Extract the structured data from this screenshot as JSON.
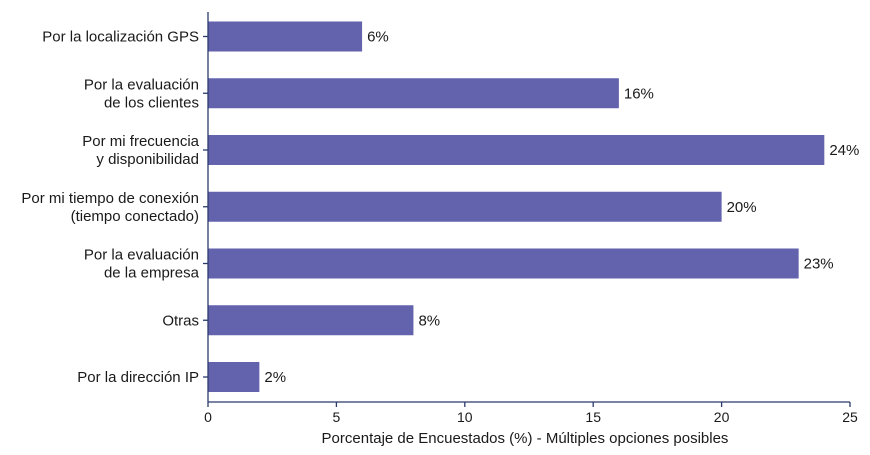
{
  "chart_data": {
    "type": "bar",
    "orientation": "horizontal",
    "categories": [
      [
        "Por la localización GPS"
      ],
      [
        "Por la evaluación",
        "de los clientes"
      ],
      [
        "Por mi frecuencia",
        "y disponibilidad"
      ],
      [
        "Por mi tiempo de conexión",
        "(tiempo conectado)"
      ],
      [
        "Por la evaluación",
        "de la empresa"
      ],
      [
        "Otras"
      ],
      [
        "Por la dirección IP"
      ]
    ],
    "values": [
      6,
      16,
      24,
      20,
      23,
      8,
      2
    ],
    "value_labels": [
      "6%",
      "16%",
      "24%",
      "20%",
      "23%",
      "8%",
      "2%"
    ],
    "xlabel": "Porcentaje de Encuestados (%) - Múltiples opciones posibles",
    "ylabel": "",
    "xlim": [
      0,
      25
    ],
    "xticks": [
      0,
      5,
      10,
      15,
      20,
      25
    ],
    "grid": false,
    "legend": "none",
    "colors": {
      "bar": "#6262ad",
      "axis": "#2b3a6b",
      "text": "#1a1a1a"
    }
  }
}
